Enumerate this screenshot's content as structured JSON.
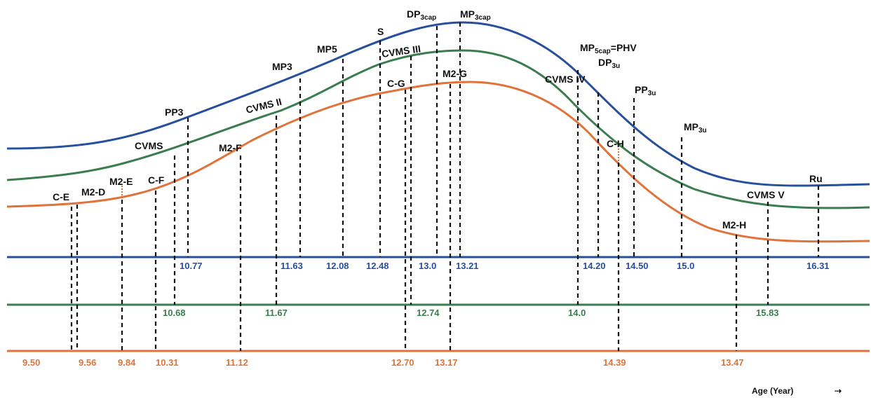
{
  "curves": {
    "blue_color": "#264f9c",
    "green_color": "#3a7d4e",
    "orange_color": "#e0723a"
  },
  "labels": {
    "pp3": "PP3",
    "mp3": "MP3",
    "mp5": "MP5",
    "s": "S",
    "dp3cap": "DP",
    "dp3cap_sub": "3cap",
    "mp3cap": "MP",
    "mp3cap_sub": "3cap",
    "mp5cap": "MP",
    "mp5cap_sub": "5cap",
    "mp5cap_suffix": "=PHV",
    "dp3u": "DP",
    "dp3u_sub": "3u",
    "pp3u": "PP",
    "pp3u_sub": "3u",
    "mp3u": "MP",
    "mp3u_sub": "3u",
    "ru": "Ru",
    "cvms": "CVMS",
    "cvms2": "CVMS II",
    "cvms3": "CVMS III",
    "cvms4": "CVMS IV",
    "cvms5": "CVMS V",
    "ce": "C-E",
    "m2d": "M2-D",
    "m2e": "M2-E",
    "cf": "C-F",
    "m2f": "M2-F",
    "cg": "C-G",
    "m2g": "M2-G",
    "ch": "C-H",
    "m2h": "M2-H"
  },
  "blue_values": [
    "10.77",
    "11.63",
    "12.08",
    "12.48",
    "13.0",
    "13.21",
    "14.20",
    "14.50",
    "15.0",
    "16.31"
  ],
  "green_values": [
    "10.68",
    "11.67",
    "12.74",
    "14.0",
    "15.83"
  ],
  "orange_values": [
    "9.50",
    "9.56",
    "9.84",
    "10.31",
    "11.12",
    "12.70",
    "13.17",
    "14.39",
    "13.47"
  ],
  "axis": {
    "title": "Age (Year)",
    "arrow": "⇢"
  }
}
